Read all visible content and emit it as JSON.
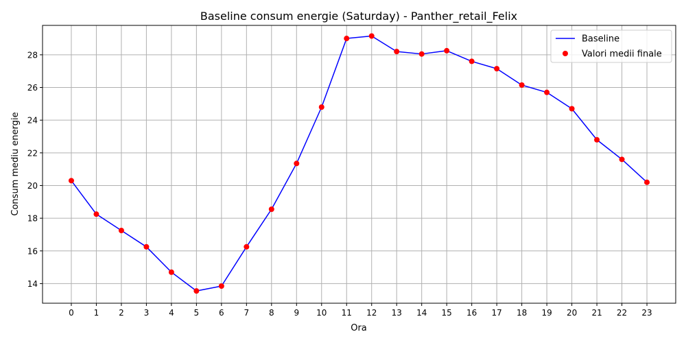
{
  "chart_data": {
    "type": "line",
    "title": "Baseline consum energie (Saturday) - Panther_retail_Felix",
    "xlabel": "Ora",
    "ylabel": "Consum mediu energie",
    "x": [
      0,
      1,
      2,
      3,
      4,
      5,
      6,
      7,
      8,
      9,
      10,
      11,
      12,
      13,
      14,
      15,
      16,
      17,
      18,
      19,
      20,
      21,
      22,
      23
    ],
    "x_tick_labels": [
      "0",
      "1",
      "2",
      "3",
      "4",
      "5",
      "6",
      "7",
      "8",
      "9",
      "10",
      "11",
      "12",
      "13",
      "14",
      "15",
      "16",
      "17",
      "18",
      "19",
      "20",
      "21",
      "22",
      "23"
    ],
    "y_ticks": [
      14,
      16,
      18,
      20,
      22,
      24,
      26,
      28
    ],
    "y_tick_labels": [
      "14",
      "16",
      "18",
      "20",
      "22",
      "24",
      "26",
      "28"
    ],
    "xlim": [
      -1.15,
      24.15
    ],
    "ylim": [
      12.8,
      29.8
    ],
    "grid": true,
    "legend_position": "top-right",
    "series": [
      {
        "name": "Baseline",
        "kind": "line",
        "color": "#0000ff",
        "values": [
          20.3,
          18.25,
          17.25,
          16.25,
          14.7,
          13.55,
          13.85,
          16.25,
          18.55,
          21.35,
          24.8,
          29.0,
          29.15,
          28.2,
          28.05,
          28.25,
          27.6,
          27.15,
          26.15,
          25.7,
          24.7,
          22.8,
          21.6,
          20.2
        ]
      },
      {
        "name": "Valori medii finale",
        "kind": "scatter",
        "color": "#ff0000",
        "values": [
          20.3,
          18.25,
          17.25,
          16.25,
          14.7,
          13.55,
          13.85,
          16.25,
          18.55,
          21.35,
          24.8,
          29.0,
          29.15,
          28.2,
          28.05,
          28.25,
          27.6,
          27.15,
          26.15,
          25.7,
          24.7,
          22.8,
          21.6,
          20.2
        ]
      }
    ]
  }
}
